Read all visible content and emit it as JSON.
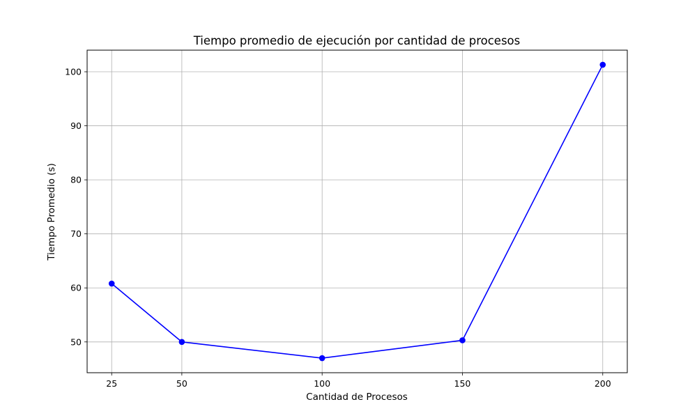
{
  "chart_data": {
    "type": "line",
    "title": "Tiempo promedio de ejecución por cantidad de procesos",
    "xlabel": "Cantidad de Procesos",
    "ylabel": "Tiempo Promedio (s)",
    "x": [
      25,
      50,
      100,
      150,
      200
    ],
    "series": [
      {
        "values": [
          60.8,
          50.0,
          47.0,
          50.3,
          101.3
        ],
        "color": "#0000ff",
        "marker": "circle"
      }
    ],
    "xticks": [
      25,
      50,
      100,
      150,
      200
    ],
    "yticks": [
      50,
      60,
      70,
      80,
      90,
      100
    ],
    "xlim": [
      16.25,
      208.75
    ],
    "ylim": [
      44.3,
      104.0
    ],
    "grid": true,
    "legend": "none"
  }
}
